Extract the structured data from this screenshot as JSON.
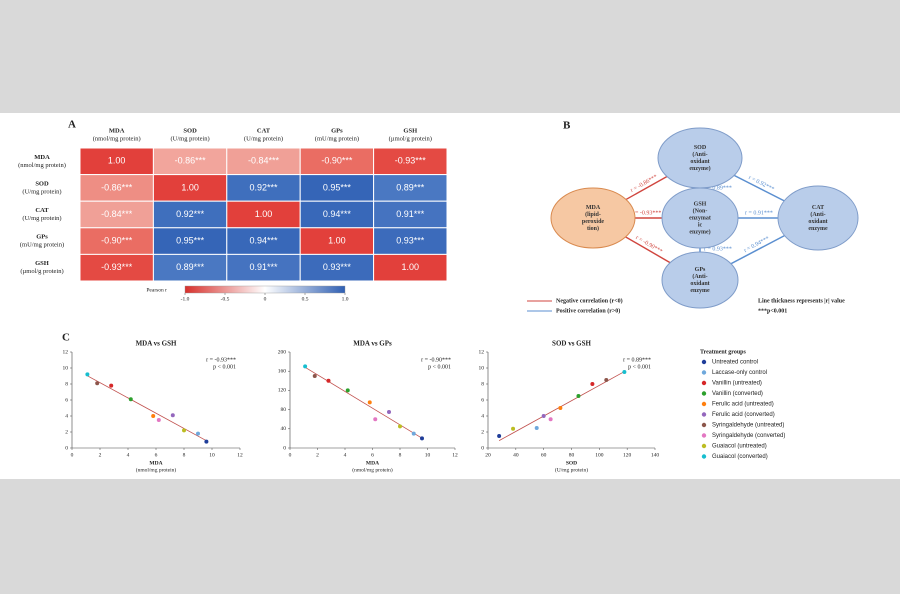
{
  "panel_labels": [
    "A",
    "B",
    "C"
  ],
  "chart_data": [
    {
      "type": "heatmap",
      "columns": [
        {
          "lines": [
            "MDA",
            "(nmol/mg protein)"
          ]
        },
        {
          "lines": [
            "SOD",
            "(U/mg protein)"
          ]
        },
        {
          "lines": [
            "CAT",
            "(U/mg protein)"
          ]
        },
        {
          "lines": [
            "GPs",
            "(mU/mg protein)"
          ]
        },
        {
          "lines": [
            "GSH",
            "(µmol/g protein)"
          ]
        }
      ],
      "rows": [
        {
          "lines": [
            "MDA",
            "(nmol/mg protein)"
          ]
        },
        {
          "lines": [
            "SOD",
            "(U/mg protein)"
          ]
        },
        {
          "lines": [
            "CAT",
            "(U/mg protein)"
          ]
        },
        {
          "lines": [
            "GPs",
            "(mU/mg protein)"
          ]
        },
        {
          "lines": [
            "GSH",
            "(µmol/g protein)"
          ]
        }
      ],
      "values": [
        [
          1,
          -0.86,
          -0.84,
          -0.9,
          -0.93
        ],
        [
          -0.86,
          1,
          0.92,
          0.95,
          0.89
        ],
        [
          -0.84,
          0.92,
          1,
          0.94,
          0.91
        ],
        [
          -0.9,
          0.95,
          0.94,
          1,
          0.93
        ],
        [
          -0.93,
          0.89,
          0.91,
          0.93,
          1
        ]
      ],
      "value_labels": [
        [
          "1.00",
          "-0.86***",
          "-0.84***",
          "-0.90***",
          "-0.93***"
        ],
        [
          "-0.86***",
          "1.00",
          "0.92***",
          "0.95***",
          "0.89***"
        ],
        [
          "-0.84***",
          "0.92***",
          "1.00",
          "0.94***",
          "0.91***"
        ],
        [
          "-0.90***",
          "0.95***",
          "0.94***",
          "1.00",
          "0.93***"
        ],
        [
          "-0.93***",
          "0.89***",
          "0.91***",
          "0.93***",
          "1.00"
        ]
      ],
      "cell_colors": [
        [
          "#e2403b",
          "#f2a59c",
          "#f0a097",
          "#ea6d63",
          "#e44a43"
        ],
        [
          "#ee8e84",
          "#e2403b",
          "#3f6fbd",
          "#3565b7",
          "#4a78c2"
        ],
        [
          "#f0a097",
          "#3f6fbd",
          "#e2403b",
          "#3868b9",
          "#4573c0"
        ],
        [
          "#ea6d63",
          "#3565b7",
          "#3868b9",
          "#e2403b",
          "#3c6bbb"
        ],
        [
          "#e44a43",
          "#4a78c2",
          "#4573c0",
          "#3c6bbb",
          "#e2403b"
        ]
      ],
      "colorbar": {
        "title": "Pearson r",
        "range": [
          -1,
          1
        ],
        "colors": [
          "#d7302b",
          "#ffffff",
          "#2f5fb3"
        ],
        "ticks": [
          {
            "value": -1,
            "label": "-1.0"
          },
          -0.5,
          0,
          0.5,
          {
            "value": 1,
            "label": "1.0"
          }
        ]
      }
    },
    {
      "type": "scatter",
      "title": "MDA vs GSH",
      "xlabel": [
        "MDA",
        "(nmol/mg protein)"
      ],
      "xlim": [
        0,
        12
      ],
      "xticks": [
        0,
        2,
        4,
        6,
        8,
        10,
        12
      ],
      "ylim": [
        0,
        12
      ],
      "yticks": [
        0,
        2,
        4,
        6,
        8,
        10,
        12
      ],
      "annotations": [
        "r = -0.93***",
        "p < 0.001"
      ],
      "x": [
        9.6,
        9.0,
        2.8,
        4.2,
        5.8,
        7.2,
        1.8,
        6.2,
        8.0,
        1.1
      ],
      "y": [
        0.8,
        1.8,
        7.8,
        6.1,
        4.0,
        4.1,
        8.1,
        3.5,
        2.2,
        9.2
      ]
    },
    {
      "type": "scatter",
      "title": "MDA vs GPs",
      "xlabel": [
        "MDA",
        "(nmol/mg protein)"
      ],
      "xlim": [
        0,
        12
      ],
      "xticks": [
        0,
        2,
        4,
        6,
        8,
        10,
        12
      ],
      "ylim": [
        0,
        200
      ],
      "yticks": [
        0,
        40,
        80,
        120,
        160,
        200
      ],
      "annotations": [
        "r = -0.90***",
        "p < 0.001"
      ],
      "x": [
        9.6,
        9.0,
        2.8,
        4.2,
        5.8,
        7.2,
        1.8,
        6.2,
        8.0,
        1.1
      ],
      "y": [
        20,
        30,
        140,
        120,
        95,
        75,
        150,
        60,
        45,
        170
      ]
    },
    {
      "type": "scatter",
      "title": "SOD vs GSH",
      "xlabel": [
        "SOD",
        "(U/mg protein)"
      ],
      "xlim": [
        20,
        140
      ],
      "xticks": [
        20,
        40,
        60,
        80,
        100,
        120,
        140
      ],
      "ylim": [
        0,
        12
      ],
      "yticks": [
        0,
        2,
        4,
        6,
        8,
        10,
        12
      ],
      "annotations": [
        "r = 0.89***",
        "p < 0.001"
      ],
      "x": [
        28,
        55,
        95,
        85,
        72,
        60,
        105,
        65,
        38,
        118
      ],
      "y": [
        1.5,
        2.5,
        8.0,
        6.5,
        5.0,
        4.0,
        8.5,
        3.6,
        2.4,
        9.5
      ]
    }
  ],
  "treatment_legend": {
    "title": "Treatment groups",
    "groups": [
      {
        "name": "Untreated control",
        "color": "#1f3d99"
      },
      {
        "name": "Laccase-only control",
        "color": "#6fa8dc"
      },
      {
        "name": "Vanillin (untreated)",
        "color": "#d62728"
      },
      {
        "name": "Vanillin (converted)",
        "color": "#2ca02c"
      },
      {
        "name": "Ferulic acid (untreated)",
        "color": "#ff7f0e"
      },
      {
        "name": "Ferulic acid (converted)",
        "color": "#9467bd"
      },
      {
        "name": "Syringaldehyde (untreated)",
        "color": "#8c564b"
      },
      {
        "name": "Syringaldehyde (converted)",
        "color": "#e377c2"
      },
      {
        "name": "Guaiacol (untreated)",
        "color": "#bcbd22"
      },
      {
        "name": "Guaiacol (converted)",
        "color": "#17becf"
      }
    ]
  },
  "diagram": {
    "nodes": [
      {
        "id": "MDA",
        "lines": [
          "MDA",
          "(lipid-",
          "peroxide",
          "tion)"
        ]
      },
      {
        "id": "SOD",
        "lines": [
          "SOD",
          "(Anti-",
          "oxidant",
          "enzyme)"
        ]
      },
      {
        "id": "GSH",
        "lines": [
          "GSH",
          "(Non-",
          "enzymat",
          "ic",
          "enzyme)"
        ]
      },
      {
        "id": "CAT",
        "lines": [
          "CAT",
          "(Anti-",
          "oxidant",
          "enzyme"
        ]
      },
      {
        "id": "GPs",
        "lines": [
          "GPs",
          "(Anti-",
          "oxidant",
          "enzyme"
        ]
      }
    ],
    "edges": [
      {
        "from": "MDA",
        "to": "SOD",
        "r": -0.86,
        "label": "r = -0.86***"
      },
      {
        "from": "MDA",
        "to": "GSH",
        "r": -0.93,
        "label": "r = -0.93***"
      },
      {
        "from": "MDA",
        "to": "GPs",
        "r": -0.9,
        "label": "r = -0.90***"
      },
      {
        "from": "SOD",
        "to": "CAT",
        "r": 0.92,
        "label": "r = 0.92***"
      },
      {
        "from": "SOD",
        "to": "GSH",
        "r": 0.89,
        "label": "r = 0.89***"
      },
      {
        "from": "GSH",
        "to": "CAT",
        "r": 0.91,
        "label": "r = 0.91***"
      },
      {
        "from": "GSH",
        "to": "GPs",
        "r": 0.93,
        "label": "r = 0.93***"
      },
      {
        "from": "GPs",
        "to": "CAT",
        "r": 0.94,
        "label": "r = 0.94***"
      }
    ],
    "legend": {
      "negative": "Negative correlation (r<0)",
      "positive": "Positive correlation (r>0)",
      "thickness": "Line thickness represents |r| value",
      "significance": "***p<0.001"
    },
    "negative_color": "#d0463f",
    "positive_color": "#5b8fd0"
  }
}
